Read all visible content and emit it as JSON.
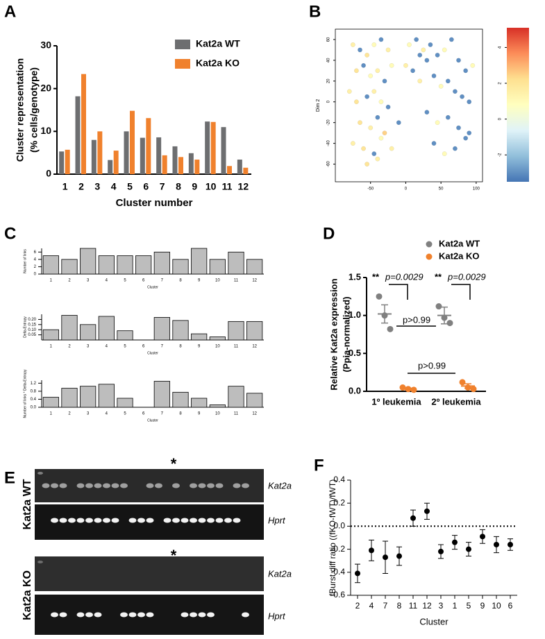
{
  "chart_data": [
    {
      "type": "bar",
      "panel": "A",
      "categories": [
        "1",
        "2",
        "3",
        "4",
        "5",
        "6",
        "7",
        "8",
        "9",
        "10",
        "11",
        "12"
      ],
      "series": [
        {
          "name": "Kat2a WT",
          "color": "#6d6e70",
          "values": [
            5.3,
            18.2,
            8,
            3.3,
            10,
            8.5,
            8.6,
            6.5,
            4.9,
            12.3,
            11,
            3.4
          ]
        },
        {
          "name": "Kat2a KO",
          "color": "#f0812d",
          "values": [
            5.7,
            23.4,
            10,
            5.5,
            14.8,
            13.1,
            4.4,
            4,
            3.4,
            12.2,
            1.9,
            1.5
          ]
        }
      ],
      "ylim": [
        0,
        30
      ],
      "yticks": [
        0,
        10,
        20,
        30
      ],
      "ylabel": [
        "Cluster representation",
        "(% cells/genotype)"
      ],
      "xlabel": "Cluster number",
      "legend": "upper right"
    },
    {
      "type": "scatter",
      "panel": "B",
      "ylabel": [
        "Dim 2"
      ],
      "x": [
        -75,
        -65,
        -55,
        -45,
        -35,
        -25,
        -70,
        -60,
        -50,
        -40,
        -30,
        -20,
        -80,
        -70,
        -55,
        -45,
        -35,
        -25,
        -65,
        -50,
        -40,
        -30,
        -75,
        -60,
        -45,
        -35,
        -20,
        -10,
        -55,
        -40,
        5,
        15,
        25,
        35,
        45,
        55,
        65,
        75,
        85,
        95,
        10,
        20,
        30,
        40,
        50,
        60,
        70,
        80,
        90,
        30,
        45,
        60,
        75,
        90,
        40,
        55,
        70,
        85,
        0,
        20
      ],
      "y": [
        55,
        50,
        45,
        55,
        60,
        50,
        30,
        35,
        25,
        30,
        20,
        35,
        10,
        0,
        5,
        10,
        0,
        -5,
        -20,
        -25,
        -15,
        -30,
        -40,
        -45,
        -50,
        -35,
        -45,
        -20,
        -60,
        -55,
        55,
        60,
        50,
        55,
        45,
        50,
        60,
        40,
        30,
        35,
        30,
        20,
        40,
        25,
        15,
        20,
        10,
        5,
        0,
        -10,
        -20,
        -15,
        -25,
        -30,
        -40,
        -50,
        -45,
        -35,
        35,
        45
      ],
      "values": [
        1.5,
        -3,
        2,
        1,
        -3,
        1.5,
        2,
        -3,
        1,
        1.5,
        -3,
        1,
        1.5,
        2,
        -3,
        1.5,
        1,
        -3,
        2,
        1.5,
        -3,
        2.5,
        1.5,
        2,
        -3,
        1,
        1.5,
        -3,
        2,
        1.5,
        1,
        -3,
        1.5,
        -3,
        -3,
        1,
        -3,
        -3,
        -3,
        1,
        -3,
        1.5,
        -3,
        -3,
        1,
        -3,
        -3,
        -3,
        -3,
        -3,
        1,
        -3,
        -3,
        -3,
        -3,
        1,
        -3,
        -3,
        1.5,
        -3
      ],
      "xlim": [
        -100,
        109
      ],
      "ylim": [
        -77,
        70
      ],
      "xticks": [
        -50,
        0,
        50,
        100
      ],
      "yticks": [
        -60,
        -40,
        -20,
        0,
        20,
        40,
        60
      ],
      "colorscale": [
        "#4575b4",
        "#91bfdb",
        "#e0f3f8",
        "#ffffbf",
        "#fee090",
        "#fc8d59",
        "#d73027"
      ],
      "clim": [
        -3.5,
        5.1
      ],
      "cticks": [
        -2,
        0,
        2,
        4
      ]
    },
    {
      "type": "bar",
      "panel": "C",
      "categories": [
        "1",
        "2",
        "3",
        "4",
        "5",
        "6",
        "7",
        "8",
        "9",
        "10",
        "11",
        "12"
      ],
      "values": [
        5,
        4,
        7,
        5,
        5,
        5,
        6,
        4,
        7,
        4,
        6,
        4
      ],
      "color": "#bdbdbd",
      "ylim": [
        0,
        7
      ],
      "yticks": [
        0,
        2,
        4,
        6
      ],
      "ylabel": [
        "Number of links"
      ],
      "xlabel": "Cluster"
    },
    {
      "type": "bar",
      "categories": [
        "1",
        "2",
        "3",
        "4",
        "5",
        "6",
        "7",
        "8",
        "9",
        "10",
        "11",
        "12"
      ],
      "values": [
        0.1,
        0.24,
        0.15,
        0.23,
        0.09,
        0.0,
        0.22,
        0.19,
        0.06,
        0.03,
        0.18,
        0.18
      ],
      "color": "#bdbdbd",
      "ylim": [
        0,
        0.25
      ],
      "yticks": [
        0.05,
        {
          "value": 0.1,
          "label": "0.10"
        },
        0.15,
        {
          "value": 0.2,
          "label": "0.20"
        }
      ],
      "ylabel": [
        "Delta-Entropy"
      ],
      "xlabel": "Cluster"
    },
    {
      "type": "bar",
      "categories": [
        "1",
        "2",
        "3",
        "4",
        "5",
        "6",
        "7",
        "8",
        "9",
        "10",
        "11",
        "12"
      ],
      "values": [
        0.5,
        0.95,
        1.05,
        1.15,
        0.45,
        0.0,
        1.3,
        0.75,
        0.45,
        0.12,
        1.05,
        0.7
      ],
      "color": "#bdbdbd",
      "ylim": [
        0,
        1.35
      ],
      "yticks": [
        {
          "value": 0,
          "label": "0.0"
        },
        0.4,
        0.8,
        1.2
      ],
      "ylabel": [
        "Number of links * Delta-Entropy"
      ],
      "xlabel": "Cluster"
    },
    {
      "type": "dot",
      "panel": "D",
      "categories": [
        "1º leukemia",
        "2º leukemia"
      ],
      "series": [
        {
          "name": "Kat2a WT",
          "color": "#808080",
          "points": [
            [
              1.25,
              1.0,
              0.82
            ],
            [
              1.12,
              0.97,
              0.9
            ]
          ],
          "mean": [
            1.02,
            1.0
          ],
          "sem": [
            0.12,
            0.11
          ]
        },
        {
          "name": "Kat2a KO",
          "color": "#f0812d",
          "points": [
            [
              0.05,
              0.03,
              0.02
            ],
            [
              0.12,
              0.05,
              0.03
            ]
          ],
          "mean": [
            0.03,
            0.07
          ],
          "sem": [
            0.01,
            0.03
          ]
        }
      ],
      "ylim": [
        0,
        1.5
      ],
      "yticks": [
        {
          "value": 0,
          "label": "0.0"
        },
        0.5,
        {
          "value": 1,
          "label": "1.0"
        },
        1.5
      ],
      "ylabel": [
        "Relative Kat2a expression",
        "(Ppia-normalized)"
      ],
      "legend": "upper right",
      "annotations": [
        "**",
        "p=0.0029",
        "**",
        "p=0.0029",
        "p>0.99",
        "p>0.99"
      ]
    },
    {
      "type": "errorbar",
      "panel": "F",
      "categories": [
        "2",
        "4",
        "7",
        "8",
        "11",
        "12",
        "3",
        "1",
        "5",
        "9",
        "10",
        "6"
      ],
      "values": [
        -0.41,
        -0.21,
        -0.27,
        -0.26,
        0.07,
        0.13,
        -0.22,
        -0.14,
        -0.2,
        -0.09,
        -0.16,
        -0.16
      ],
      "errors": [
        0.08,
        0.09,
        0.14,
        0.08,
        0.07,
        0.07,
        0.06,
        0.06,
        0.06,
        0.06,
        0.07,
        0.05
      ],
      "ylim": [
        -0.6,
        0.4
      ],
      "yticks": [
        -0.6,
        -0.4,
        -0.2,
        {
          "value": 0,
          "label": "0.0"
        },
        0.2,
        0.4
      ],
      "hline": 0,
      "ylabel": [
        "fBurst diff ratio ((fKO-fWT)/fWT)"
      ],
      "xlabel": "Cluster"
    }
  ],
  "gel": {
    "panel": "E",
    "blocks": [
      {
        "genotype": "Kat2a WT",
        "marker": "*",
        "genes": [
          "Kat2a",
          "Hprt"
        ]
      },
      {
        "genotype": "Kat2a KO",
        "marker": "*",
        "genes": [
          "Kat2a",
          "Hprt"
        ]
      }
    ]
  }
}
